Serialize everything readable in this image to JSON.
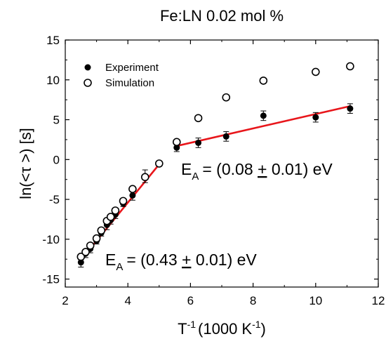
{
  "chart_data": {
    "type": "scatter",
    "title": "Fe:LN 0.02 mol %",
    "xlabel": "T⁻¹ (1000 K⁻¹)",
    "xlabel_parts": {
      "main": "T",
      "sup1": "-1",
      "mid": "(1000 K",
      "sup2": "-1",
      "end": ")"
    },
    "ylabel": "ln(<τ >) [s]",
    "xlim": [
      2,
      12
    ],
    "ylim": [
      -16,
      15
    ],
    "xticks": [
      2,
      4,
      6,
      8,
      10,
      12
    ],
    "yticks": [
      -15,
      -10,
      -5,
      0,
      5,
      10,
      15
    ],
    "xtick_labels": [
      "2",
      "4",
      "6",
      "8",
      "10",
      "12"
    ],
    "ytick_labels": [
      "-15",
      "-10",
      "-5",
      "0",
      "5",
      "10",
      "15"
    ],
    "grid": false,
    "legend_position": "top-left",
    "series": [
      {
        "name": "Experiment",
        "marker": "filled-circle",
        "color": "#000000",
        "x": [
          2.5,
          2.65,
          2.8,
          3.0,
          3.15,
          3.33,
          3.45,
          3.6,
          3.85,
          4.15,
          4.55,
          5.56,
          6.25,
          7.14,
          8.33,
          10.0,
          11.1
        ],
        "y": [
          -12.9,
          -11.8,
          -11.2,
          -10.2,
          -9.2,
          -8.2,
          -7.6,
          -6.9,
          -5.5,
          -4.5,
          -2.1,
          1.5,
          2.1,
          2.9,
          5.5,
          5.3,
          6.4
        ],
        "yerr": [
          0.6,
          0.5,
          0.5,
          0.4,
          0.4,
          0.6,
          0.5,
          0.5,
          0.4,
          0.6,
          0.8,
          0.5,
          0.6,
          0.6,
          0.6,
          0.6,
          0.6
        ]
      },
      {
        "name": "Simulation",
        "marker": "open-circle",
        "color": "#000000",
        "x": [
          2.5,
          2.65,
          2.8,
          3.0,
          3.15,
          3.33,
          3.45,
          3.6,
          3.85,
          4.15,
          4.55,
          5.0,
          5.56,
          6.25,
          7.14,
          8.33,
          10.0,
          11.1
        ],
        "y": [
          -12.2,
          -11.6,
          -10.8,
          -9.9,
          -8.9,
          -7.7,
          -7.2,
          -6.4,
          -5.2,
          -3.7,
          -2.2,
          -0.5,
          2.2,
          5.2,
          7.8,
          9.9,
          11.0,
          11.7
        ]
      }
    ],
    "fits": [
      {
        "color": "#e8161b",
        "x": [
          2.5,
          5.0
        ],
        "y": [
          -12.6,
          -0.6
        ]
      },
      {
        "color": "#e8161b",
        "x": [
          5.56,
          11.1
        ],
        "y": [
          1.7,
          6.7
        ]
      }
    ],
    "annotations": [
      {
        "base": "E",
        "sub": "A",
        "rest": "= (0.08 ",
        "pm": "+",
        "tail": " 0.01) eV",
        "at_x": 5.1,
        "at_y": -1.6
      },
      {
        "base": "E",
        "sub": "A",
        "rest": "= (0.43 ",
        "pm": "+",
        "tail": " 0.01) eV",
        "at_x": 3.3,
        "at_y": -13.0
      }
    ]
  }
}
